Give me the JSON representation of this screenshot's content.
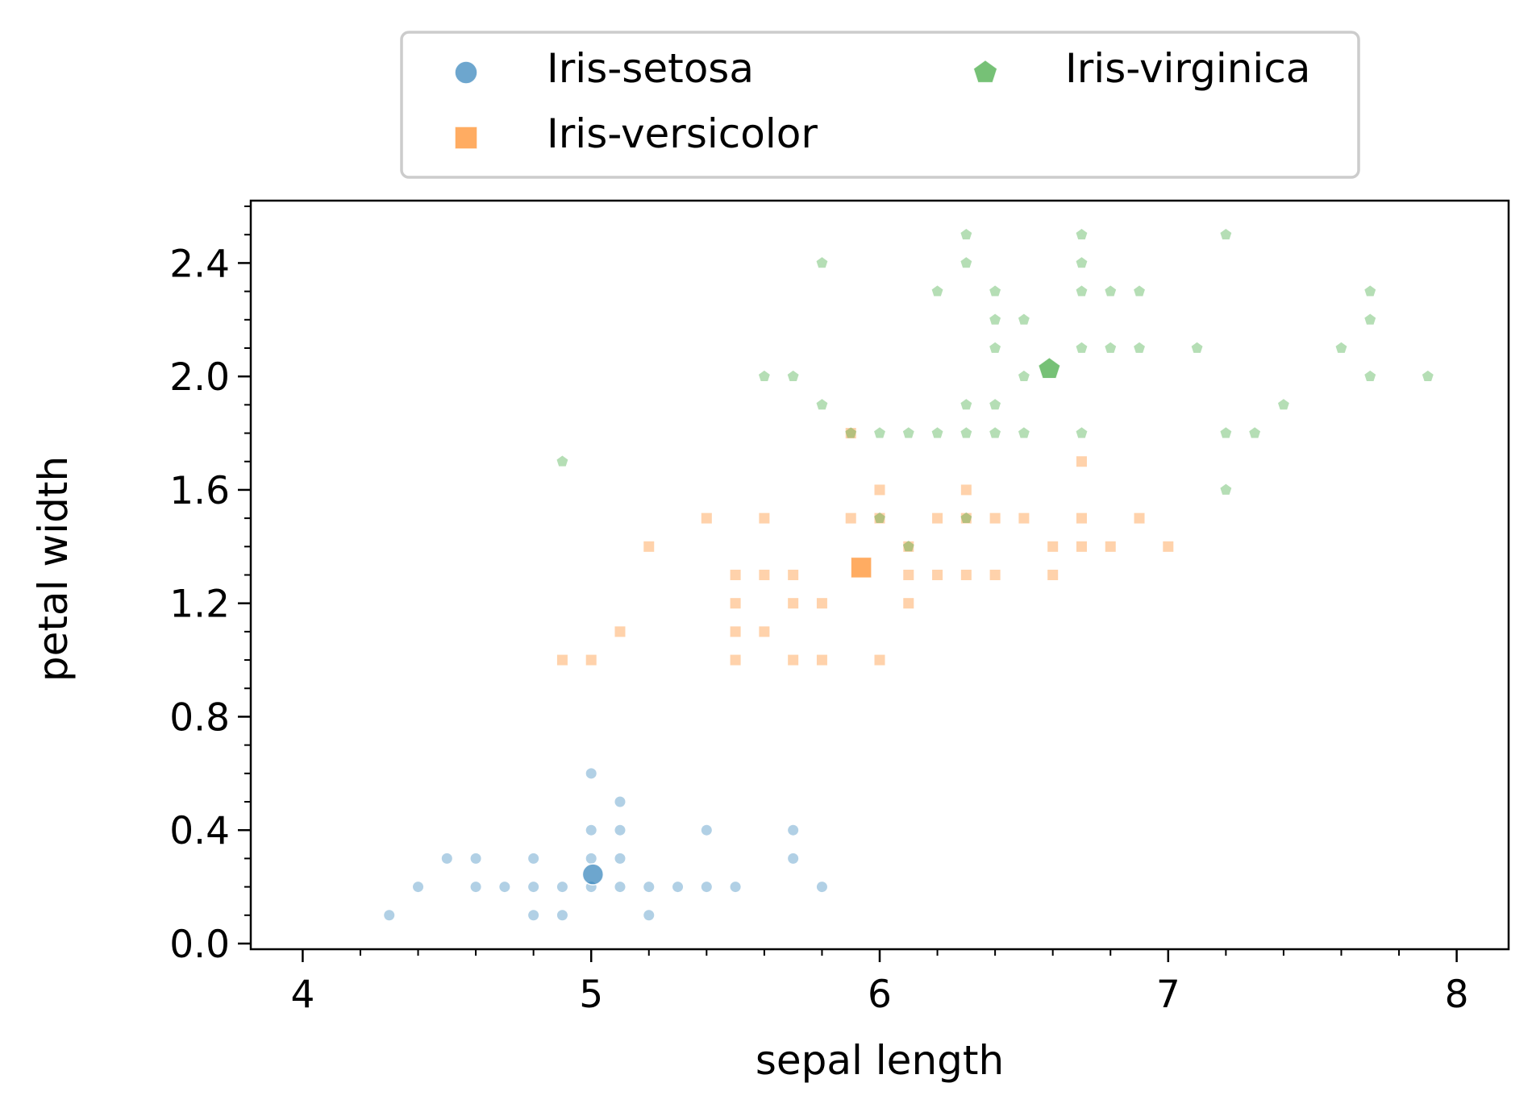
{
  "chart_data": {
    "type": "scatter",
    "title": "",
    "xlabel": "sepal length",
    "ylabel": "petal width",
    "xlim": [
      3.82,
      8.18
    ],
    "ylim": [
      -0.02,
      2.62
    ],
    "xticks": [
      4,
      5,
      6,
      7,
      8
    ],
    "xtick_labels": [
      "4",
      "5",
      "6",
      "7",
      "8"
    ],
    "yticks": [
      0.0,
      0.4,
      0.8,
      1.2,
      1.6,
      2.0,
      2.4
    ],
    "ytick_labels": [
      "0.0",
      "0.4",
      "0.8",
      "1.2",
      "1.6",
      "2.0",
      "2.4"
    ],
    "grid": false,
    "legend": {
      "placement": "top-center, outside plot",
      "columns": 2
    },
    "series": [
      {
        "name": "Iris-setosa",
        "marker": "circle",
        "color": "#1f77b4",
        "centroid": {
          "x": 5.006,
          "y": 0.244
        },
        "points": [
          [
            4.3,
            0.1
          ],
          [
            4.4,
            0.2
          ],
          [
            4.5,
            0.3
          ],
          [
            4.6,
            0.3
          ],
          [
            4.6,
            0.2
          ],
          [
            4.7,
            0.2
          ],
          [
            4.8,
            0.3
          ],
          [
            4.8,
            0.2
          ],
          [
            4.8,
            0.1
          ],
          [
            4.9,
            0.2
          ],
          [
            4.9,
            0.1
          ],
          [
            5.0,
            0.6
          ],
          [
            5.0,
            0.4
          ],
          [
            5.0,
            0.3
          ],
          [
            5.0,
            0.2
          ],
          [
            5.1,
            0.5
          ],
          [
            5.1,
            0.4
          ],
          [
            5.1,
            0.3
          ],
          [
            5.1,
            0.2
          ],
          [
            5.2,
            0.2
          ],
          [
            5.2,
            0.1
          ],
          [
            5.3,
            0.2
          ],
          [
            5.4,
            0.4
          ],
          [
            5.4,
            0.2
          ],
          [
            5.5,
            0.2
          ],
          [
            5.7,
            0.4
          ],
          [
            5.7,
            0.3
          ],
          [
            5.8,
            0.2
          ]
        ]
      },
      {
        "name": "Iris-versicolor",
        "marker": "square",
        "color": "#ff7f0e",
        "centroid": {
          "x": 5.936,
          "y": 1.326
        },
        "points": [
          [
            4.9,
            1.0
          ],
          [
            5.0,
            1.0
          ],
          [
            5.1,
            1.1
          ],
          [
            5.2,
            1.4
          ],
          [
            5.4,
            1.5
          ],
          [
            5.5,
            1.3
          ],
          [
            5.5,
            1.2
          ],
          [
            5.5,
            1.1
          ],
          [
            5.5,
            1.0
          ],
          [
            5.6,
            1.5
          ],
          [
            5.6,
            1.3
          ],
          [
            5.6,
            1.1
          ],
          [
            5.7,
            1.3
          ],
          [
            5.7,
            1.2
          ],
          [
            5.7,
            1.0
          ],
          [
            5.8,
            1.2
          ],
          [
            5.8,
            1.0
          ],
          [
            5.9,
            1.8
          ],
          [
            5.9,
            1.5
          ],
          [
            6.0,
            1.6
          ],
          [
            6.0,
            1.5
          ],
          [
            6.0,
            1.0
          ],
          [
            6.1,
            1.4
          ],
          [
            6.1,
            1.3
          ],
          [
            6.1,
            1.2
          ],
          [
            6.2,
            1.5
          ],
          [
            6.2,
            1.3
          ],
          [
            6.3,
            1.6
          ],
          [
            6.3,
            1.5
          ],
          [
            6.3,
            1.3
          ],
          [
            6.4,
            1.5
          ],
          [
            6.4,
            1.3
          ],
          [
            6.5,
            1.5
          ],
          [
            6.6,
            1.4
          ],
          [
            6.6,
            1.3
          ],
          [
            6.7,
            1.7
          ],
          [
            6.7,
            1.5
          ],
          [
            6.7,
            1.4
          ],
          [
            6.8,
            1.4
          ],
          [
            6.9,
            1.5
          ],
          [
            7.0,
            1.4
          ]
        ]
      },
      {
        "name": "Iris-virginica",
        "marker": "pentagon",
        "color": "#2ca02c",
        "centroid": {
          "x": 6.588,
          "y": 2.026
        },
        "points": [
          [
            4.9,
            1.7
          ],
          [
            5.6,
            2.0
          ],
          [
            5.7,
            2.0
          ],
          [
            5.8,
            2.4
          ],
          [
            5.8,
            1.9
          ],
          [
            5.9,
            1.8
          ],
          [
            6.0,
            1.8
          ],
          [
            6.0,
            1.5
          ],
          [
            6.1,
            1.8
          ],
          [
            6.1,
            1.4
          ],
          [
            6.2,
            2.3
          ],
          [
            6.2,
            1.8
          ],
          [
            6.3,
            2.5
          ],
          [
            6.3,
            2.4
          ],
          [
            6.3,
            1.9
          ],
          [
            6.3,
            1.8
          ],
          [
            6.3,
            1.5
          ],
          [
            6.4,
            2.3
          ],
          [
            6.4,
            2.2
          ],
          [
            6.4,
            2.1
          ],
          [
            6.4,
            1.9
          ],
          [
            6.4,
            1.8
          ],
          [
            6.5,
            2.2
          ],
          [
            6.5,
            2.0
          ],
          [
            6.5,
            1.8
          ],
          [
            6.7,
            2.5
          ],
          [
            6.7,
            2.4
          ],
          [
            6.7,
            2.3
          ],
          [
            6.7,
            2.1
          ],
          [
            6.7,
            1.8
          ],
          [
            6.8,
            2.3
          ],
          [
            6.8,
            2.1
          ],
          [
            6.9,
            2.3
          ],
          [
            6.9,
            2.1
          ],
          [
            7.1,
            2.1
          ],
          [
            7.2,
            2.5
          ],
          [
            7.2,
            1.8
          ],
          [
            7.2,
            1.6
          ],
          [
            7.3,
            1.8
          ],
          [
            7.4,
            1.9
          ],
          [
            7.6,
            2.1
          ],
          [
            7.7,
            2.3
          ],
          [
            7.7,
            2.2
          ],
          [
            7.7,
            2.0
          ],
          [
            7.9,
            2.0
          ]
        ]
      }
    ]
  }
}
